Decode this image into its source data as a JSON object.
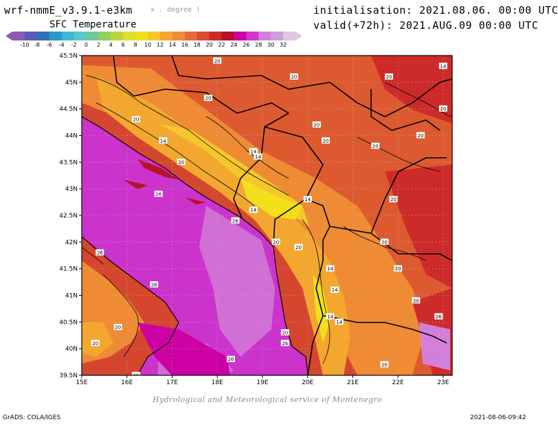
{
  "header": {
    "model_title": "wrf-nmmE_v3.9.1-e3km",
    "units_note": "x . degree )",
    "variable": "SFC Temperature",
    "init_line": "initialisation: 2021.08.06. 00:00 UTC",
    "valid_line": "valid(+72h): 2021.AUG.09 00:00 UTC"
  },
  "colorbar": {
    "labels": [
      "-10",
      "-8",
      "-6",
      "-4",
      "-2",
      "0",
      "2",
      "4",
      "6",
      "8",
      "10",
      "12",
      "14",
      "16",
      "18",
      "20",
      "22",
      "24",
      "26",
      "28",
      "30",
      "32"
    ],
    "colors": [
      "#8c5ab4",
      "#5a58b8",
      "#2e72b9",
      "#2f97c9",
      "#3fb6d6",
      "#59c8c8",
      "#6fc79a",
      "#93cf5a",
      "#bcd73b",
      "#dee12c",
      "#f1df1c",
      "#f6c62b",
      "#f3a72e",
      "#ee8b34",
      "#e6693a",
      "#db4a32",
      "#cd2b2a",
      "#b8112a",
      "#cc00a3",
      "#d534d0",
      "#d37fda",
      "#cba0d7",
      "#e0c7e2"
    ]
  },
  "map": {
    "lat_labels": [
      "45.5N",
      "45N",
      "44.5N",
      "44N",
      "43.5N",
      "43N",
      "42.5N",
      "42N",
      "41.5N",
      "41N",
      "40.5N",
      "40N",
      "39.5N"
    ],
    "lon_labels": [
      "15E",
      "16E",
      "17E",
      "18E",
      "19E",
      "20E",
      "21E",
      "22E",
      "23E"
    ],
    "contour_labels": [
      {
        "text": "20",
        "lon": 18.0,
        "lat": 45.4
      },
      {
        "text": "14",
        "lon": 23.0,
        "lat": 45.3
      },
      {
        "text": "20",
        "lon": 17.8,
        "lat": 44.7
      },
      {
        "text": "20",
        "lon": 19.7,
        "lat": 45.1
      },
      {
        "text": "20",
        "lon": 21.8,
        "lat": 45.1
      },
      {
        "text": "20",
        "lon": 16.2,
        "lat": 44.3
      },
      {
        "text": "20",
        "lon": 20.2,
        "lat": 44.2
      },
      {
        "text": "20",
        "lon": 22.5,
        "lat": 44.0
      },
      {
        "text": "20",
        "lon": 23.0,
        "lat": 44.5
      },
      {
        "text": "14",
        "lon": 16.8,
        "lat": 43.9
      },
      {
        "text": "20",
        "lon": 20.4,
        "lat": 43.9
      },
      {
        "text": "20",
        "lon": 21.5,
        "lat": 43.8
      },
      {
        "text": "20",
        "lon": 17.2,
        "lat": 43.5
      },
      {
        "text": "14",
        "lon": 18.8,
        "lat": 43.7
      },
      {
        "text": "14",
        "lon": 18.9,
        "lat": 43.6
      },
      {
        "text": "26",
        "lon": 16.7,
        "lat": 42.9
      },
      {
        "text": "14",
        "lon": 20.0,
        "lat": 42.8
      },
      {
        "text": "20",
        "lon": 21.9,
        "lat": 42.8
      },
      {
        "text": "14",
        "lon": 18.8,
        "lat": 42.6
      },
      {
        "text": "26",
        "lon": 18.4,
        "lat": 42.4
      },
      {
        "text": "20",
        "lon": 19.3,
        "lat": 42.0
      },
      {
        "text": "20",
        "lon": 19.8,
        "lat": 41.9
      },
      {
        "text": "20",
        "lon": 21.7,
        "lat": 42.0
      },
      {
        "text": "26",
        "lon": 15.4,
        "lat": 41.8
      },
      {
        "text": "14",
        "lon": 20.5,
        "lat": 41.5
      },
      {
        "text": "20",
        "lon": 22.0,
        "lat": 41.5
      },
      {
        "text": "26",
        "lon": 16.6,
        "lat": 41.2
      },
      {
        "text": "14",
        "lon": 20.6,
        "lat": 41.1
      },
      {
        "text": "20",
        "lon": 22.4,
        "lat": 40.9
      },
      {
        "text": "14",
        "lon": 20.5,
        "lat": 40.6
      },
      {
        "text": "14",
        "lon": 20.7,
        "lat": 40.5
      },
      {
        "text": "26",
        "lon": 22.9,
        "lat": 40.6
      },
      {
        "text": "20",
        "lon": 15.8,
        "lat": 40.4
      },
      {
        "text": "20",
        "lon": 19.5,
        "lat": 40.3
      },
      {
        "text": "20",
        "lon": 15.3,
        "lat": 40.1
      },
      {
        "text": "26",
        "lon": 19.5,
        "lat": 40.1
      },
      {
        "text": "26",
        "lon": 18.3,
        "lat": 39.8
      },
      {
        "text": "20",
        "lon": 21.7,
        "lat": 39.7
      },
      {
        "text": "26",
        "lon": 16.2,
        "lat": 39.5
      }
    ]
  },
  "footer": {
    "credit": "Hydrological and Meteorological service of Montenegro",
    "grads": "GrADS: COLA/IGES",
    "timestamp": "2021-08-06-09:42"
  }
}
